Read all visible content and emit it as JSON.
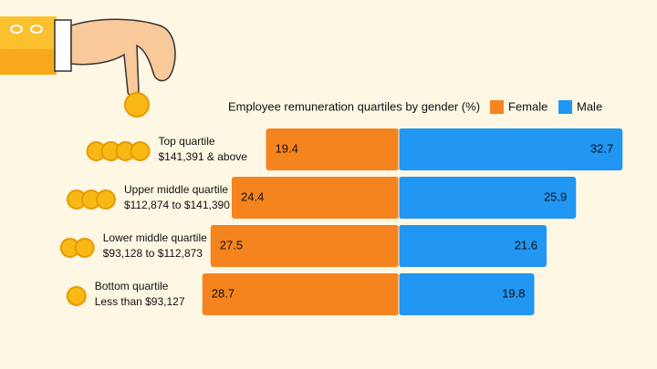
{
  "chart_data": {
    "type": "diverging-bar",
    "title": "Employee remuneration quartiles by gender (%)",
    "categories": [
      "Top quartile",
      "Upper middle quartile",
      "Lower middle quartile",
      "Bottom quartile"
    ],
    "subcategories": [
      "$141,391 & above",
      "$112,874 to $141,390",
      "$93,128 to $112,873",
      "Less than $93,127"
    ],
    "series": [
      {
        "name": "Female",
        "color": "#f5841f",
        "values": [
          19.4,
          24.4,
          27.5,
          28.7
        ]
      },
      {
        "name": "Male",
        "color": "#2196f3",
        "values": [
          32.7,
          25.9,
          21.6,
          19.8
        ]
      }
    ]
  }
}
